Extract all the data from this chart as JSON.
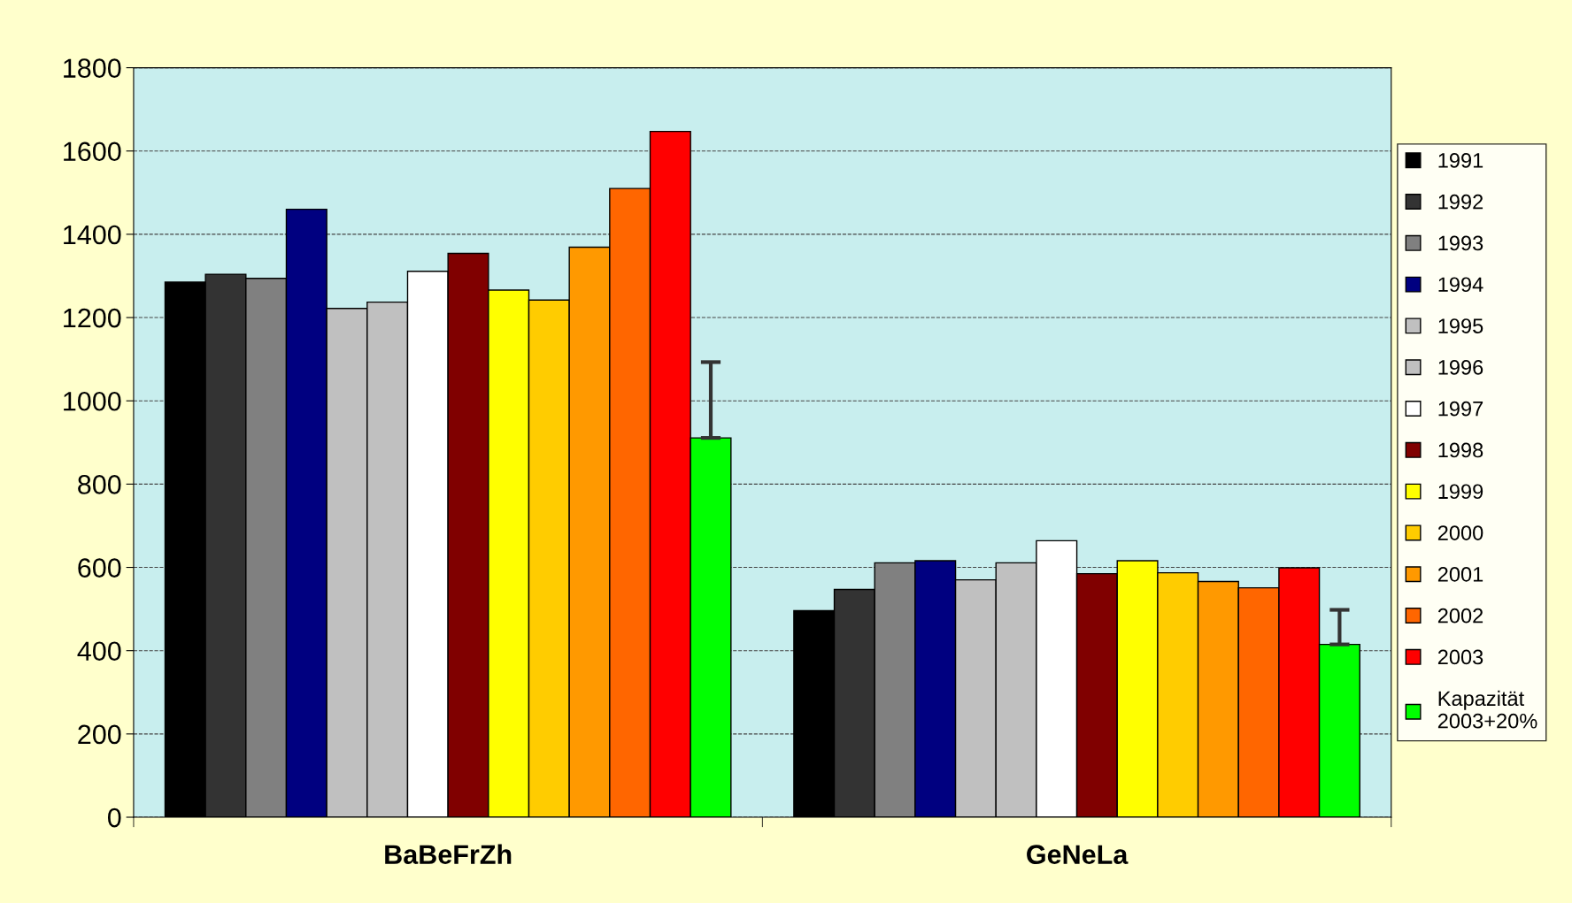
{
  "chart_data": {
    "type": "bar",
    "categories": [
      "BaBeFrZh",
      "GeNeLa"
    ],
    "series": [
      {
        "name": "1991",
        "color": "#000000",
        "values": [
          1285,
          496
        ]
      },
      {
        "name": "1992",
        "color": "#333333",
        "values": [
          1304,
          547
        ]
      },
      {
        "name": "1993",
        "color": "#808080",
        "values": [
          1294,
          611
        ]
      },
      {
        "name": "1994",
        "color": "#000080",
        "values": [
          1460,
          616
        ]
      },
      {
        "name": "1995",
        "color": "#c0c0c0",
        "values": [
          1222,
          570
        ]
      },
      {
        "name": "1996",
        "color": "#c0c0c0",
        "values": [
          1237,
          611
        ]
      },
      {
        "name": "1997",
        "color": "#ffffff",
        "values": [
          1311,
          664
        ]
      },
      {
        "name": "1998",
        "color": "#800000",
        "values": [
          1354,
          585
        ]
      },
      {
        "name": "1999",
        "color": "#ffff00",
        "values": [
          1266,
          616
        ]
      },
      {
        "name": "2000",
        "color": "#ffcc00",
        "values": [
          1242,
          587
        ]
      },
      {
        "name": "2001",
        "color": "#ff9900",
        "values": [
          1369,
          566
        ]
      },
      {
        "name": "2002",
        "color": "#ff6600",
        "values": [
          1510,
          551
        ]
      },
      {
        "name": "2003",
        "color": "#ff0000",
        "values": [
          1647,
          599
        ]
      },
      {
        "name": "Kapazität\n2003+20%",
        "color": "#00ff00",
        "values": [
          911,
          415
        ],
        "errors": [
          [
            911,
            1093
          ],
          [
            415,
            498
          ]
        ]
      }
    ],
    "ylim": [
      0,
      1800
    ],
    "yticks": [
      0,
      200,
      400,
      600,
      800,
      1000,
      1200,
      1400,
      1600,
      1800
    ],
    "grid": "y",
    "legend": "right"
  }
}
